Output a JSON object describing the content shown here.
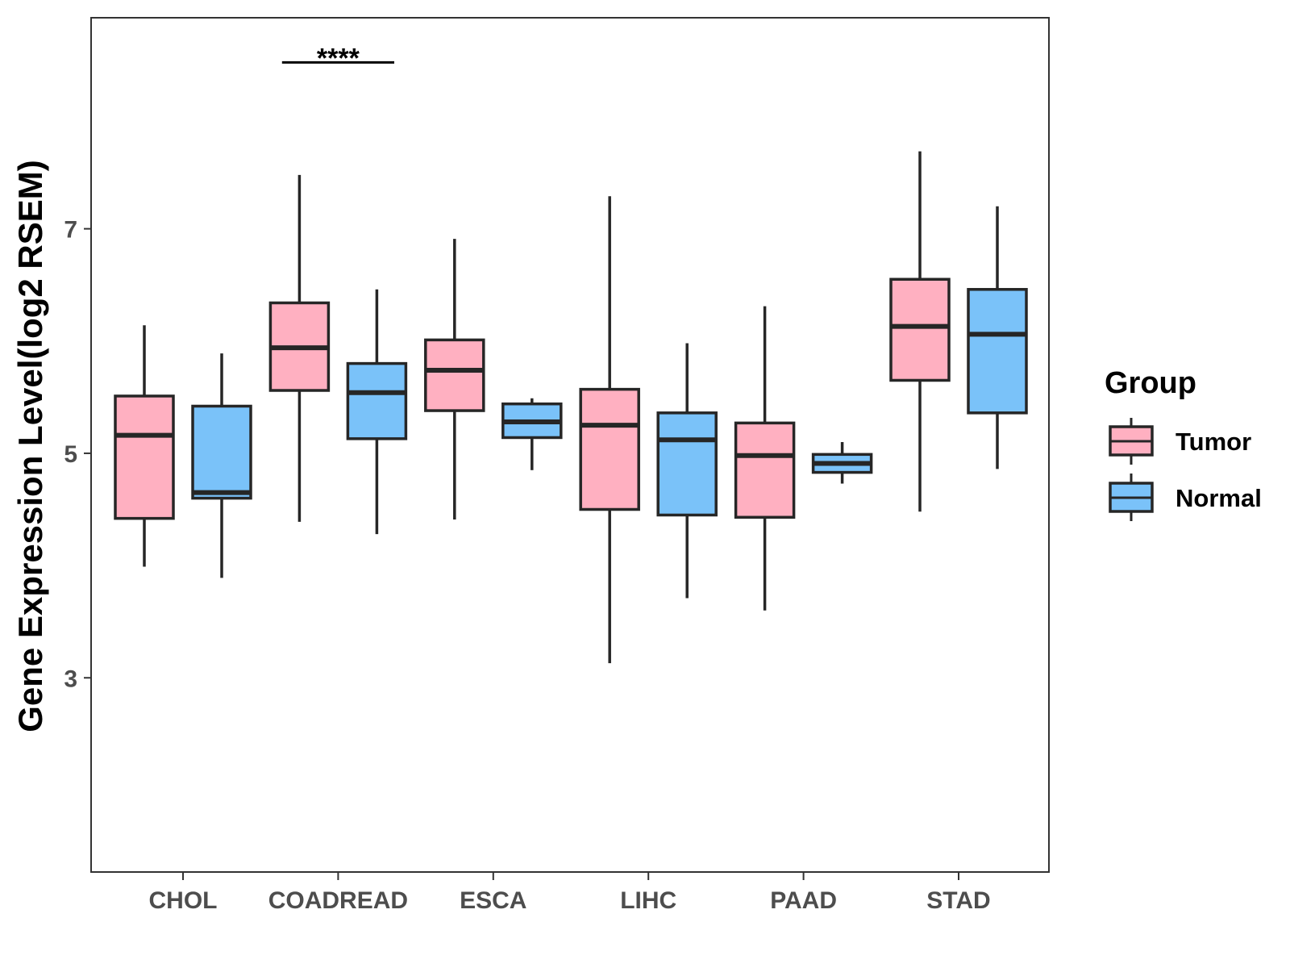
{
  "chart_data": {
    "type": "boxplot",
    "title": "",
    "xlabel": "",
    "ylabel": "Gene Expression Level(log2 RSEM)",
    "ylim": [
      1.27,
      8.88
    ],
    "yticks": [
      3,
      5,
      7
    ],
    "yticklabels": [
      "3",
      "5",
      "7"
    ],
    "grid": false,
    "categories": [
      "CHOL",
      "COADREAD",
      "ESCA",
      "LIHC",
      "PAAD",
      "STAD"
    ],
    "legend": {
      "title": "Group",
      "position": "right",
      "entries": [
        "Tumor",
        "Normal"
      ]
    },
    "series": [
      {
        "name": "Tumor",
        "color": "#FFB0C1",
        "boxes": [
          {
            "category": "CHOL",
            "low": 3.99,
            "q1": 4.42,
            "median": 5.16,
            "q3": 5.51,
            "high": 6.14
          },
          {
            "category": "COADREAD",
            "low": 4.39,
            "q1": 5.56,
            "median": 5.94,
            "q3": 6.34,
            "high": 7.48
          },
          {
            "category": "ESCA",
            "low": 4.41,
            "q1": 5.38,
            "median": 5.74,
            "q3": 6.01,
            "high": 6.91
          },
          {
            "category": "LIHC",
            "low": 3.13,
            "q1": 4.5,
            "median": 5.25,
            "q3": 5.57,
            "high": 7.29
          },
          {
            "category": "PAAD",
            "low": 3.6,
            "q1": 4.43,
            "median": 4.98,
            "q3": 5.27,
            "high": 6.31
          },
          {
            "category": "STAD",
            "low": 4.48,
            "q1": 5.65,
            "median": 6.13,
            "q3": 6.55,
            "high": 7.69
          }
        ]
      },
      {
        "name": "Normal",
        "color": "#7AC2F9",
        "boxes": [
          {
            "category": "CHOL",
            "low": 3.89,
            "q1": 4.6,
            "median": 4.65,
            "q3": 5.42,
            "high": 5.89
          },
          {
            "category": "COADREAD",
            "low": 4.28,
            "q1": 5.13,
            "median": 5.54,
            "q3": 5.8,
            "high": 6.46
          },
          {
            "category": "ESCA",
            "low": 4.85,
            "q1": 5.14,
            "median": 5.28,
            "q3": 5.44,
            "high": 5.49
          },
          {
            "category": "LIHC",
            "low": 3.71,
            "q1": 4.45,
            "median": 5.12,
            "q3": 5.36,
            "high": 5.98
          },
          {
            "category": "PAAD",
            "low": 4.73,
            "q1": 4.83,
            "median": 4.91,
            "q3": 4.99,
            "high": 5.1
          },
          {
            "category": "STAD",
            "low": 4.86,
            "q1": 5.36,
            "median": 6.06,
            "q3": 6.46,
            "high": 7.2
          }
        ]
      }
    ],
    "annotations": [
      {
        "category": "COADREAD",
        "text": "****",
        "y": 8.54
      }
    ]
  }
}
